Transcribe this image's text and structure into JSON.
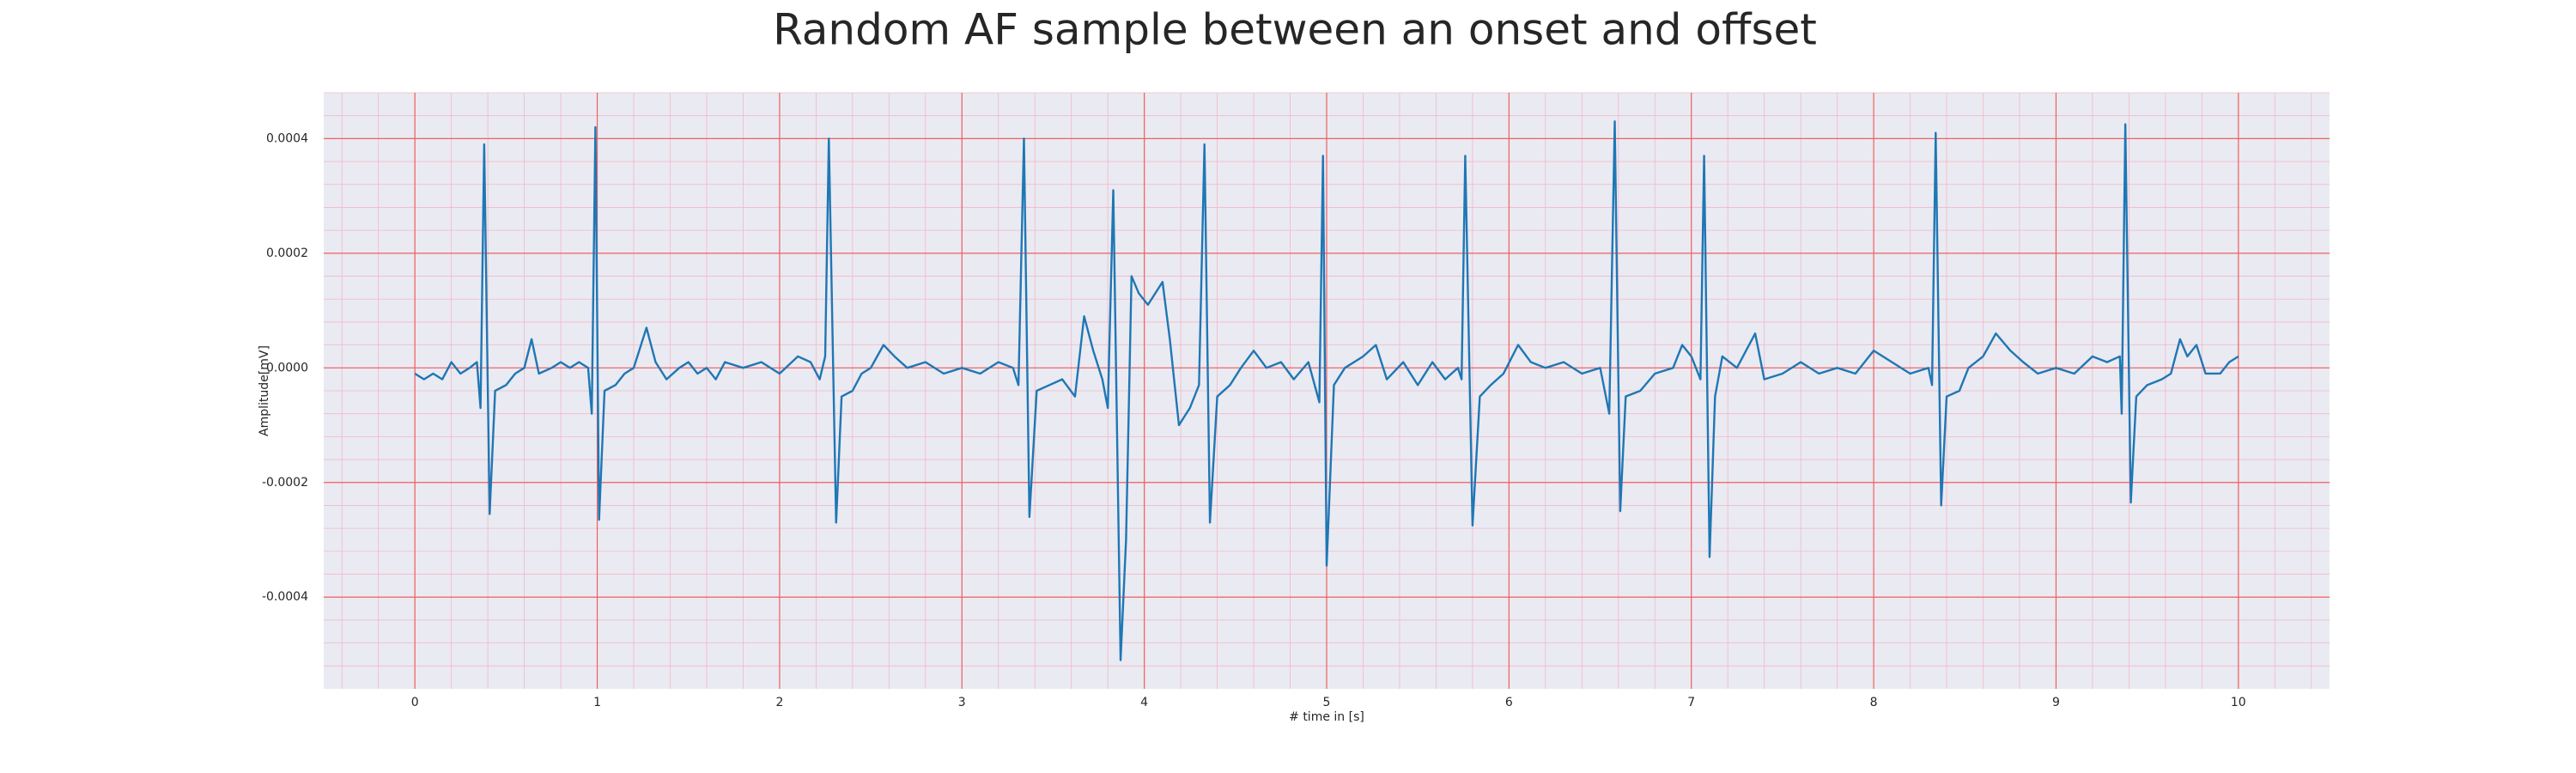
{
  "chart_data": {
    "type": "line",
    "title": "Random AF sample between an onset and offset",
    "x_label": "# time in [s]",
    "y_label": "Amplitude[mV]",
    "color": "#1f77b4",
    "grid": true,
    "minor_grid": true,
    "xlim": [
      -0.5,
      10.5
    ],
    "ylim": [
      -0.00056,
      0.00048
    ],
    "xticks": [
      0,
      1,
      2,
      3,
      4,
      5,
      6,
      7,
      8,
      9,
      10
    ],
    "yticks": [
      -0.0004,
      -0.0002,
      {
        "value": 0,
        "label": "0.0000"
      },
      0.0002,
      0.0004
    ],
    "x": [
      0.0,
      0.05,
      0.1,
      0.15,
      0.2,
      0.25,
      0.3,
      0.34,
      0.36,
      0.38,
      0.41,
      0.44,
      0.5,
      0.55,
      0.6,
      0.64,
      0.68,
      0.75,
      0.8,
      0.85,
      0.9,
      0.95,
      0.97,
      0.99,
      1.01,
      1.04,
      1.1,
      1.15,
      1.2,
      1.27,
      1.32,
      1.38,
      1.45,
      1.5,
      1.55,
      1.6,
      1.65,
      1.7,
      1.8,
      1.9,
      2.0,
      2.1,
      2.17,
      2.22,
      2.25,
      2.27,
      2.31,
      2.34,
      2.4,
      2.45,
      2.5,
      2.57,
      2.63,
      2.7,
      2.8,
      2.9,
      3.0,
      3.1,
      3.2,
      3.28,
      3.31,
      3.34,
      3.37,
      3.41,
      3.48,
      3.55,
      3.62,
      3.67,
      3.72,
      3.77,
      3.8,
      3.83,
      3.87,
      3.9,
      3.93,
      3.97,
      4.02,
      4.1,
      4.14,
      4.19,
      4.25,
      4.3,
      4.33,
      4.36,
      4.4,
      4.47,
      4.53,
      4.6,
      4.67,
      4.75,
      4.82,
      4.9,
      4.96,
      4.98,
      5.0,
      5.04,
      5.1,
      5.2,
      5.27,
      5.33,
      5.42,
      5.5,
      5.58,
      5.65,
      5.72,
      5.74,
      5.76,
      5.8,
      5.84,
      5.9,
      5.97,
      6.05,
      6.12,
      6.2,
      6.3,
      6.4,
      6.5,
      6.55,
      6.58,
      6.61,
      6.64,
      6.72,
      6.8,
      6.9,
      6.95,
      7.0,
      7.05,
      7.07,
      7.1,
      7.13,
      7.17,
      7.25,
      7.35,
      7.4,
      7.5,
      7.6,
      7.7,
      7.8,
      7.9,
      8.0,
      8.1,
      8.2,
      8.3,
      8.32,
      8.34,
      8.37,
      8.4,
      8.47,
      8.52,
      8.6,
      8.67,
      8.75,
      8.82,
      8.9,
      9.0,
      9.1,
      9.2,
      9.28,
      9.35,
      9.36,
      9.38,
      9.41,
      9.44,
      9.5,
      9.58,
      9.63,
      9.68,
      9.72,
      9.77,
      9.82,
      9.9,
      9.95,
      10.0
    ],
    "values": [
      -1e-05,
      -2e-05,
      -1e-05,
      -2e-05,
      1e-05,
      -1e-05,
      0.0,
      1e-05,
      -7e-05,
      0.00039,
      -0.000255,
      -4e-05,
      -3e-05,
      -1e-05,
      0.0,
      5e-05,
      -1e-05,
      0.0,
      1e-05,
      0.0,
      1e-05,
      0.0,
      -8e-05,
      0.00042,
      -0.000265,
      -4e-05,
      -3e-05,
      -1e-05,
      0.0,
      7e-05,
      1e-05,
      -2e-05,
      0.0,
      1e-05,
      -1e-05,
      0.0,
      -2e-05,
      1e-05,
      0.0,
      1e-05,
      -1e-05,
      2e-05,
      1e-05,
      -2e-05,
      2e-05,
      0.0004,
      -0.00027,
      -5e-05,
      -4e-05,
      -1e-05,
      0.0,
      4e-05,
      2e-05,
      0.0,
      1e-05,
      -1e-05,
      0.0,
      -1e-05,
      1e-05,
      0.0,
      -3e-05,
      0.0004,
      -0.00026,
      -4e-05,
      -3e-05,
      -2e-05,
      -5e-05,
      9e-05,
      3e-05,
      -2e-05,
      -7e-05,
      0.00031,
      -0.00051,
      -0.0003,
      0.00016,
      0.00013,
      0.00011,
      0.00015,
      5e-05,
      -0.0001,
      -7e-05,
      -3e-05,
      0.00039,
      -0.00027,
      -5e-05,
      -3e-05,
      0.0,
      3e-05,
      0.0,
      1e-05,
      -2e-05,
      1e-05,
      -6e-05,
      0.00037,
      -0.000345,
      -3e-05,
      0.0,
      2e-05,
      4e-05,
      -2e-05,
      1e-05,
      -3e-05,
      1e-05,
      -2e-05,
      0.0,
      -2e-05,
      0.00037,
      -0.000275,
      -5e-05,
      -3e-05,
      -1e-05,
      4e-05,
      1e-05,
      0.0,
      1e-05,
      -1e-05,
      0.0,
      -8e-05,
      0.00043,
      -0.00025,
      -5e-05,
      -4e-05,
      -1e-05,
      0.0,
      4e-05,
      2e-05,
      -2e-05,
      0.00037,
      -0.00033,
      -5e-05,
      2e-05,
      0.0,
      6e-05,
      -2e-05,
      -1e-05,
      1e-05,
      -1e-05,
      0.0,
      -1e-05,
      3e-05,
      1e-05,
      -1e-05,
      0.0,
      -3e-05,
      0.00041,
      -0.00024,
      -5e-05,
      -4e-05,
      0.0,
      2e-05,
      6e-05,
      3e-05,
      1e-05,
      -1e-05,
      0.0,
      -1e-05,
      2e-05,
      1e-05,
      2e-05,
      -8e-05,
      0.000425,
      -0.000235,
      -5e-05,
      -3e-05,
      -2e-05,
      -1e-05,
      5e-05,
      2e-05,
      4e-05,
      -1e-05,
      -1e-05,
      1e-05,
      2e-05
    ]
  }
}
